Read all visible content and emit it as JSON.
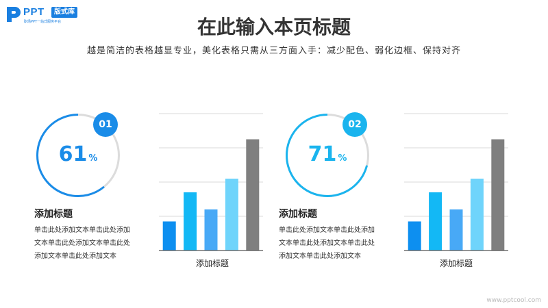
{
  "logo": {
    "brand": "PPT",
    "badge": "版式库",
    "tagline": "职场PPT一站式服务平台"
  },
  "slide": {
    "title": "在此输入本页标题",
    "subtitle": "越是简洁的表格越显专业，美化表格只需从三方面入手：减少配色、弱化边框、保持对齐"
  },
  "items": [
    {
      "number": "01",
      "percent": 61,
      "percent_label": "61",
      "percent_sign": "%",
      "title": "添加标题",
      "text": [
        "单击此处添加文本单击此处添加",
        "文本单击此处添加文本单击此处",
        "添加文本单击此处添加文本"
      ],
      "color": "#1a8ce8"
    },
    {
      "number": "02",
      "percent": 71,
      "percent_label": "71",
      "percent_sign": "%",
      "title": "添加标题",
      "text": [
        "单击此处添加文本单击此处添加",
        "文本单击此处添加文本单击此处",
        "添加文本单击此处添加文本"
      ],
      "color": "#1ab4ee"
    }
  ],
  "chart_data": [
    {
      "type": "bar",
      "xlabel": "添加标题",
      "ylim": [
        0,
        4
      ],
      "grid": true,
      "categories": [
        "",
        "",
        "",
        "",
        ""
      ],
      "values": [
        0.85,
        1.7,
        1.2,
        2.1,
        3.25
      ],
      "colors": [
        "#0d8ff0",
        "#13b8f5",
        "#48a9f6",
        "#6fd4fb",
        "#7f7f7f"
      ]
    },
    {
      "type": "bar",
      "xlabel": "添加标题",
      "ylim": [
        0,
        4
      ],
      "grid": true,
      "categories": [
        "",
        "",
        "",
        "",
        ""
      ],
      "values": [
        0.85,
        1.7,
        1.2,
        2.1,
        3.25
      ],
      "colors": [
        "#0d8ff0",
        "#13b8f5",
        "#48a9f6",
        "#6fd4fb",
        "#7f7f7f"
      ]
    }
  ],
  "ring_track_color": "#dcdcdc",
  "watermark": "www.pptcool.com"
}
